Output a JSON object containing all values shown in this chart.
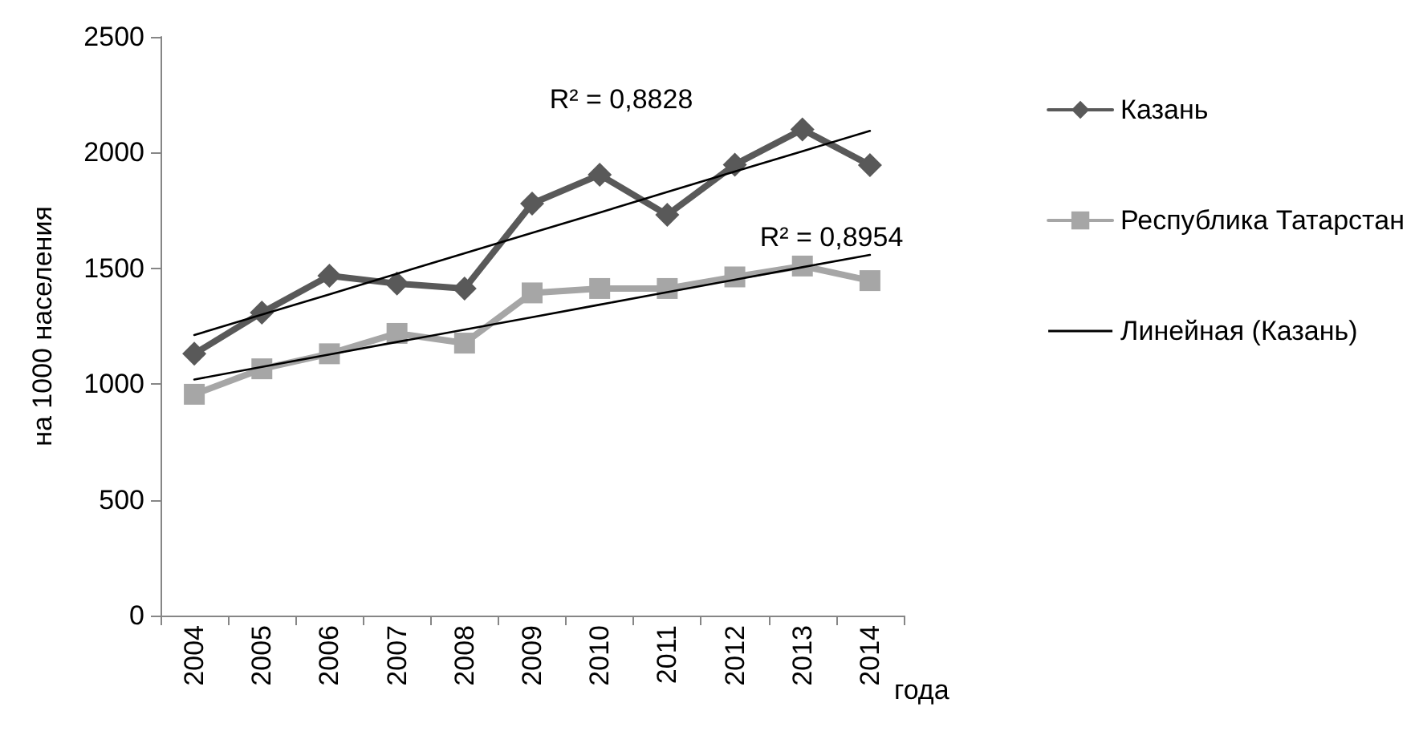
{
  "chart_data": {
    "type": "line",
    "xlabel": "года",
    "ylabel": "на 1000 населения",
    "categories": [
      "2004",
      "2005",
      "2006",
      "2007",
      "2008",
      "2009",
      "2010",
      "2011",
      "2012",
      "2013",
      "2014"
    ],
    "series": [
      {
        "name": "Казань",
        "color": "#595959",
        "marker": "diamond",
        "values": [
          1131,
          1309,
          1468,
          1434,
          1413,
          1780,
          1904,
          1731,
          1948,
          2100,
          1946
        ]
      },
      {
        "name": "Республика Татарстан",
        "color": "#a6a6a6",
        "marker": "square",
        "values": [
          956,
          1066,
          1131,
          1219,
          1177,
          1394,
          1413,
          1413,
          1463,
          1510,
          1447
        ]
      },
      {
        "name": "Линейная (Казань)",
        "color": "#000000",
        "marker": "none",
        "values": [
          1212,
          1300,
          1388,
          1477,
          1565,
          1653,
          1741,
          1830,
          1918,
          2006,
          2094
        ]
      },
      {
        "color": "#000000",
        "marker": "none",
        "values": [
          1020,
          1074,
          1128,
          1182,
          1235,
          1289,
          1343,
          1397,
          1451,
          1505,
          1558
        ]
      }
    ],
    "annotations": [
      "R² = 0,8828",
      "R² = 0,8954"
    ],
    "ylim": [
      0,
      2500
    ],
    "yticks": [
      0,
      500,
      1000,
      1500,
      2000,
      2500
    ],
    "grid": false,
    "legend": "right"
  }
}
